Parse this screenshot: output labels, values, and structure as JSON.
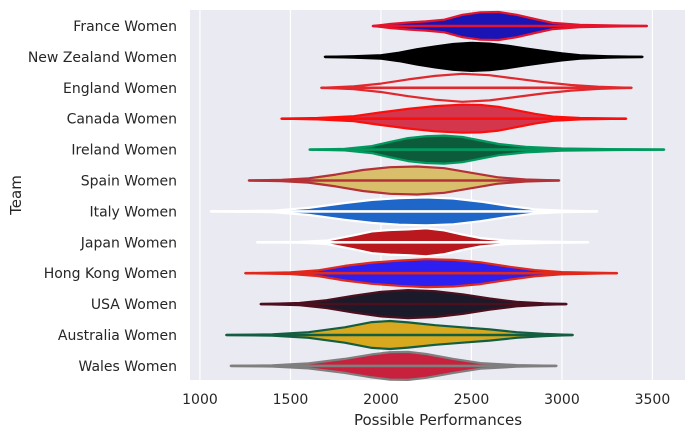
{
  "chart_data": {
    "type": "violin",
    "orientation": "horizontal",
    "title": "",
    "xlabel": "Possible Performances",
    "ylabel": "Team",
    "xlim": [
      945,
      3680
    ],
    "xticks": [
      1000,
      1500,
      2000,
      2500,
      3000,
      3500
    ],
    "grid": true,
    "legend": "none",
    "background": "#eaeaf2",
    "series": [
      {
        "name": "France Women",
        "fill": "#1a14b4",
        "edge": "#e3142c",
        "min": 1955,
        "max": 3470,
        "density": [
          [
            1955,
            0
          ],
          [
            2050,
            0.14
          ],
          [
            2150,
            0.25
          ],
          [
            2250,
            0.33
          ],
          [
            2350,
            0.45
          ],
          [
            2450,
            0.8
          ],
          [
            2550,
            0.98
          ],
          [
            2650,
            1.0
          ],
          [
            2750,
            0.8
          ],
          [
            2850,
            0.5
          ],
          [
            2950,
            0.22
          ],
          [
            3100,
            0.08
          ],
          [
            3250,
            0.04
          ],
          [
            3470,
            0
          ]
        ]
      },
      {
        "name": "New Zealand Women",
        "fill": "#000000",
        "edge": "#000000",
        "min": 1690,
        "max": 3445,
        "density": [
          [
            1690,
            0
          ],
          [
            1850,
            0.05
          ],
          [
            2000,
            0.12
          ],
          [
            2100,
            0.3
          ],
          [
            2200,
            0.55
          ],
          [
            2300,
            0.75
          ],
          [
            2400,
            0.92
          ],
          [
            2500,
            1.0
          ],
          [
            2600,
            0.95
          ],
          [
            2700,
            0.8
          ],
          [
            2800,
            0.6
          ],
          [
            2900,
            0.42
          ],
          [
            3000,
            0.25
          ],
          [
            3100,
            0.12
          ],
          [
            3250,
            0.05
          ],
          [
            3445,
            0
          ]
        ]
      },
      {
        "name": "England Women",
        "fill": "#eaeaf2",
        "edge": "#e0282d",
        "min": 1670,
        "max": 3385,
        "density": [
          [
            1670,
            0
          ],
          [
            1850,
            0.1
          ],
          [
            2000,
            0.3
          ],
          [
            2150,
            0.6
          ],
          [
            2300,
            0.85
          ],
          [
            2450,
            1.0
          ],
          [
            2600,
            0.9
          ],
          [
            2750,
            0.65
          ],
          [
            2900,
            0.4
          ],
          [
            3050,
            0.2
          ],
          [
            3200,
            0.08
          ],
          [
            3385,
            0
          ]
        ]
      },
      {
        "name": "Canada Women",
        "fill": "#d4374d",
        "edge": "#fa0f0c",
        "min": 1450,
        "max": 3355,
        "density": [
          [
            1450,
            0
          ],
          [
            1650,
            0.05
          ],
          [
            1850,
            0.18
          ],
          [
            2000,
            0.45
          ],
          [
            2150,
            0.7
          ],
          [
            2300,
            0.9
          ],
          [
            2450,
            1.0
          ],
          [
            2550,
            0.98
          ],
          [
            2650,
            0.85
          ],
          [
            2750,
            0.6
          ],
          [
            2850,
            0.35
          ],
          [
            2950,
            0.15
          ],
          [
            3100,
            0.05
          ],
          [
            3355,
            0
          ]
        ]
      },
      {
        "name": "Ireland Women",
        "fill": "#0c5c3c",
        "edge": "#009a5e",
        "min": 1605,
        "max": 3565,
        "density": [
          [
            1605,
            0
          ],
          [
            1800,
            0.06
          ],
          [
            1950,
            0.25
          ],
          [
            2050,
            0.55
          ],
          [
            2150,
            0.82
          ],
          [
            2250,
            0.96
          ],
          [
            2350,
            1.0
          ],
          [
            2450,
            0.9
          ],
          [
            2550,
            0.65
          ],
          [
            2650,
            0.4
          ],
          [
            2800,
            0.2
          ],
          [
            3000,
            0.08
          ],
          [
            3300,
            0.03
          ],
          [
            3565,
            0
          ]
        ]
      },
      {
        "name": "Spain Women",
        "fill": "#d9bf6c",
        "edge": "#b23238",
        "min": 1270,
        "max": 2985,
        "density": [
          [
            1270,
            0
          ],
          [
            1450,
            0.04
          ],
          [
            1600,
            0.15
          ],
          [
            1750,
            0.42
          ],
          [
            1900,
            0.75
          ],
          [
            2050,
            0.95
          ],
          [
            2200,
            1.0
          ],
          [
            2350,
            0.88
          ],
          [
            2500,
            0.55
          ],
          [
            2650,
            0.22
          ],
          [
            2800,
            0.07
          ],
          [
            2985,
            0
          ]
        ]
      },
      {
        "name": "Italy Women",
        "fill": "#1e66c8",
        "edge": "#ffffff",
        "min": 1060,
        "max": 3195,
        "density": [
          [
            1060,
            0
          ],
          [
            1400,
            0.05
          ],
          [
            1600,
            0.25
          ],
          [
            1800,
            0.6
          ],
          [
            1950,
            0.82
          ],
          [
            2100,
            0.95
          ],
          [
            2250,
            1.0
          ],
          [
            2400,
            0.92
          ],
          [
            2550,
            0.7
          ],
          [
            2700,
            0.4
          ],
          [
            2850,
            0.15
          ],
          [
            3000,
            0.06
          ],
          [
            3195,
            0
          ]
        ]
      },
      {
        "name": "Japan Women",
        "fill": "#b8181e",
        "edge": "#ffffff",
        "min": 1315,
        "max": 3145,
        "density": [
          [
            1315,
            0
          ],
          [
            1550,
            0.03
          ],
          [
            1700,
            0.12
          ],
          [
            1850,
            0.5
          ],
          [
            1950,
            0.78
          ],
          [
            2050,
            0.88
          ],
          [
            2150,
            0.92
          ],
          [
            2250,
            1.0
          ],
          [
            2350,
            0.85
          ],
          [
            2450,
            0.55
          ],
          [
            2550,
            0.3
          ],
          [
            2700,
            0.12
          ],
          [
            2900,
            0.05
          ],
          [
            3145,
            0
          ]
        ]
      },
      {
        "name": "Hong Kong Women",
        "fill": "#2c1ff0",
        "edge": "#e0281c",
        "min": 1250,
        "max": 3305,
        "density": [
          [
            1250,
            0
          ],
          [
            1500,
            0.06
          ],
          [
            1650,
            0.2
          ],
          [
            1800,
            0.52
          ],
          [
            1950,
            0.76
          ],
          [
            2100,
            0.9
          ],
          [
            2250,
            1.0
          ],
          [
            2400,
            0.95
          ],
          [
            2550,
            0.78
          ],
          [
            2700,
            0.48
          ],
          [
            2850,
            0.22
          ],
          [
            3000,
            0.08
          ],
          [
            3305,
            0
          ]
        ]
      },
      {
        "name": "USA Women",
        "fill": "#1a1a2a",
        "edge": "#4c0f1e",
        "min": 1335,
        "max": 3025,
        "density": [
          [
            1335,
            0
          ],
          [
            1550,
            0.08
          ],
          [
            1700,
            0.28
          ],
          [
            1850,
            0.6
          ],
          [
            2000,
            0.88
          ],
          [
            2150,
            1.0
          ],
          [
            2300,
            0.92
          ],
          [
            2450,
            0.7
          ],
          [
            2600,
            0.4
          ],
          [
            2750,
            0.16
          ],
          [
            2900,
            0.05
          ],
          [
            3025,
            0
          ]
        ]
      },
      {
        "name": "Australia Women",
        "fill": "#d8a81e",
        "edge": "#135e40",
        "min": 1145,
        "max": 3060,
        "density": [
          [
            1145,
            0
          ],
          [
            1400,
            0.05
          ],
          [
            1600,
            0.2
          ],
          [
            1800,
            0.55
          ],
          [
            1950,
            0.92
          ],
          [
            2050,
            1.0
          ],
          [
            2150,
            0.9
          ],
          [
            2300,
            0.7
          ],
          [
            2450,
            0.55
          ],
          [
            2600,
            0.4
          ],
          [
            2750,
            0.2
          ],
          [
            2900,
            0.08
          ],
          [
            3060,
            0
          ]
        ]
      },
      {
        "name": "Wales Women",
        "fill": "#c8213e",
        "edge": "#7f7f7f",
        "min": 1170,
        "max": 2970,
        "density": [
          [
            1170,
            0
          ],
          [
            1400,
            0.04
          ],
          [
            1600,
            0.18
          ],
          [
            1800,
            0.5
          ],
          [
            1950,
            0.82
          ],
          [
            2050,
            0.98
          ],
          [
            2150,
            1.0
          ],
          [
            2250,
            0.85
          ],
          [
            2400,
            0.5
          ],
          [
            2550,
            0.2
          ],
          [
            2750,
            0.06
          ],
          [
            2970,
            0
          ]
        ]
      }
    ]
  }
}
